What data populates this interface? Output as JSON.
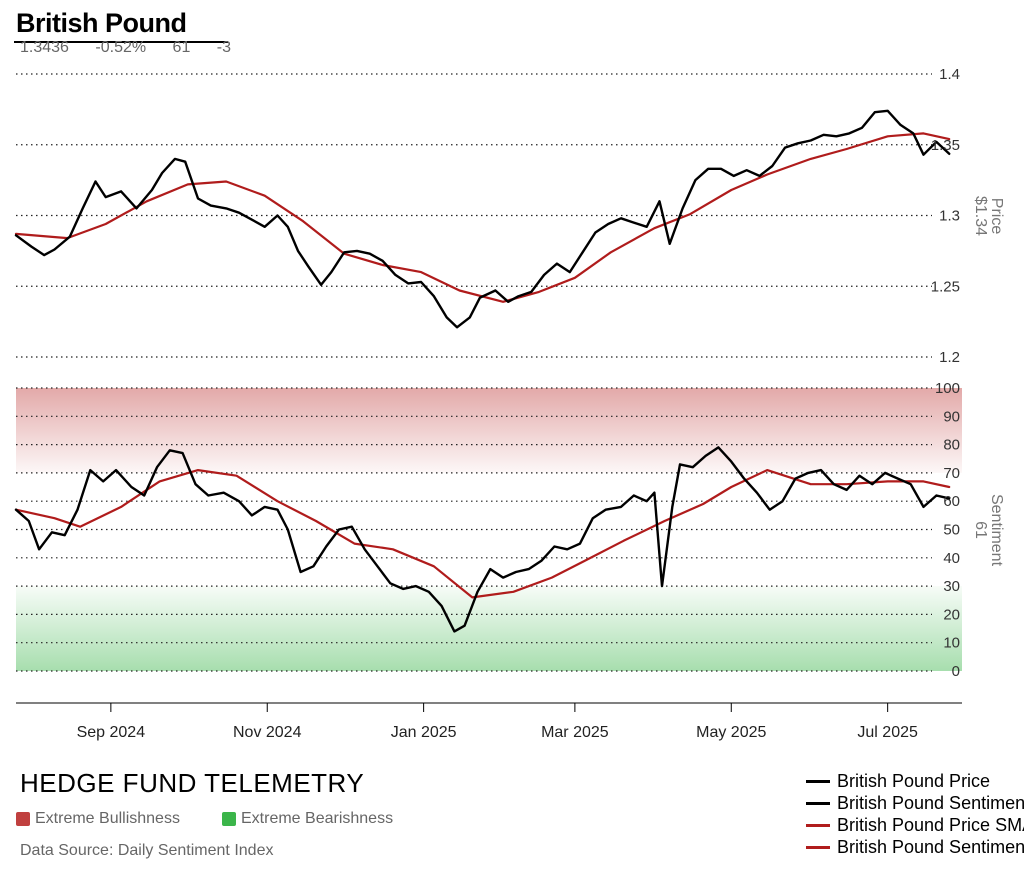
{
  "header": {
    "title": "British Pound",
    "stats": [
      "1.3436",
      "-0.52%",
      "61",
      "-3"
    ]
  },
  "footer": {
    "brand": "HEDGE FUND TELEMETRY",
    "categories": [
      {
        "label": "Extreme Bullishness",
        "color": "#c0403f"
      },
      {
        "label": "Extreme Bearishness",
        "color": "#3bb54a"
      }
    ],
    "source": "Data Source: Daily Sentiment Index"
  },
  "legend": [
    {
      "label": "British Pound Price",
      "color": "#000000"
    },
    {
      "label": "British Pound Sentiment",
      "color": "#000000"
    },
    {
      "label": "British Pound Price SMA",
      "color": "#b01c1c"
    },
    {
      "label": "British Pound Sentiment SMA",
      "color": "#b01c1c"
    }
  ],
  "chart_data": [
    {
      "type": "line",
      "title": "British Pound",
      "ylabel": "Price",
      "ylabel_value": "$1.34",
      "ylim": [
        1.2,
        1.4
      ],
      "yticks": [
        1.2,
        1.25,
        1.3,
        1.35,
        1.4
      ],
      "ytick_labels": [
        "1.2",
        "1.25",
        "1.3",
        "1.35",
        "1.4"
      ],
      "xlim": [
        "2024-07-26",
        "2025-07-30"
      ],
      "grid": true,
      "series": [
        {
          "name": "British Pound Price",
          "color": "#000000",
          "points": [
            [
              "2024-07-26",
              1.286
            ],
            [
              "2024-08-01",
              1.278
            ],
            [
              "2024-08-06",
              1.272
            ],
            [
              "2024-08-10",
              1.276
            ],
            [
              "2024-08-16",
              1.285
            ],
            [
              "2024-08-21",
              1.305
            ],
            [
              "2024-08-26",
              1.324
            ],
            [
              "2024-08-30",
              1.313
            ],
            [
              "2024-09-05",
              1.317
            ],
            [
              "2024-09-11",
              1.305
            ],
            [
              "2024-09-17",
              1.318
            ],
            [
              "2024-09-21",
              1.33
            ],
            [
              "2024-09-26",
              1.34
            ],
            [
              "2024-09-30",
              1.338
            ],
            [
              "2024-10-05",
              1.312
            ],
            [
              "2024-10-10",
              1.307
            ],
            [
              "2024-10-16",
              1.305
            ],
            [
              "2024-10-21",
              1.302
            ],
            [
              "2024-10-26",
              1.297
            ],
            [
              "2024-10-31",
              1.292
            ],
            [
              "2024-11-05",
              1.3
            ],
            [
              "2024-11-09",
              1.292
            ],
            [
              "2024-11-13",
              1.275
            ],
            [
              "2024-11-17",
              1.264
            ],
            [
              "2024-11-22",
              1.251
            ],
            [
              "2024-11-26",
              1.26
            ],
            [
              "2024-12-01",
              1.274
            ],
            [
              "2024-12-06",
              1.275
            ],
            [
              "2024-12-11",
              1.273
            ],
            [
              "2024-12-16",
              1.268
            ],
            [
              "2024-12-21",
              1.258
            ],
            [
              "2024-12-26",
              1.252
            ],
            [
              "2024-12-31",
              1.253
            ],
            [
              "2025-01-05",
              1.243
            ],
            [
              "2025-01-10",
              1.228
            ],
            [
              "2025-01-14",
              1.221
            ],
            [
              "2025-01-19",
              1.228
            ],
            [
              "2025-01-23",
              1.242
            ],
            [
              "2025-01-29",
              1.247
            ],
            [
              "2025-02-03",
              1.239
            ],
            [
              "2025-02-07",
              1.243
            ],
            [
              "2025-02-12",
              1.246
            ],
            [
              "2025-02-17",
              1.258
            ],
            [
              "2025-02-22",
              1.266
            ],
            [
              "2025-02-27",
              1.26
            ],
            [
              "2025-03-04",
              1.274
            ],
            [
              "2025-03-09",
              1.288
            ],
            [
              "2025-03-14",
              1.294
            ],
            [
              "2025-03-19",
              1.298
            ],
            [
              "2025-03-24",
              1.295
            ],
            [
              "2025-03-29",
              1.292
            ],
            [
              "2025-04-03",
              1.31
            ],
            [
              "2025-04-07",
              1.28
            ],
            [
              "2025-04-12",
              1.305
            ],
            [
              "2025-04-17",
              1.325
            ],
            [
              "2025-04-22",
              1.333
            ],
            [
              "2025-04-27",
              1.333
            ],
            [
              "2025-05-02",
              1.328
            ],
            [
              "2025-05-07",
              1.332
            ],
            [
              "2025-05-12",
              1.328
            ],
            [
              "2025-05-17",
              1.335
            ],
            [
              "2025-05-22",
              1.348
            ],
            [
              "2025-05-27",
              1.351
            ],
            [
              "2025-06-01",
              1.353
            ],
            [
              "2025-06-06",
              1.357
            ],
            [
              "2025-06-11",
              1.356
            ],
            [
              "2025-06-16",
              1.358
            ],
            [
              "2025-06-21",
              1.362
            ],
            [
              "2025-06-26",
              1.373
            ],
            [
              "2025-07-01",
              1.374
            ],
            [
              "2025-07-06",
              1.364
            ],
            [
              "2025-07-11",
              1.358
            ],
            [
              "2025-07-15",
              1.343
            ],
            [
              "2025-07-20",
              1.352
            ],
            [
              "2025-07-25",
              1.3436
            ]
          ]
        },
        {
          "name": "British Pound Price SMA",
          "color": "#b01c1c",
          "points": [
            [
              "2024-07-26",
              1.287
            ],
            [
              "2024-08-15",
              1.284
            ],
            [
              "2024-08-30",
              1.294
            ],
            [
              "2024-09-15",
              1.31
            ],
            [
              "2024-10-01",
              1.322
            ],
            [
              "2024-10-16",
              1.324
            ],
            [
              "2024-10-31",
              1.314
            ],
            [
              "2024-11-15",
              1.296
            ],
            [
              "2024-12-01",
              1.273
            ],
            [
              "2024-12-16",
              1.265
            ],
            [
              "2024-12-31",
              1.26
            ],
            [
              "2025-01-15",
              1.247
            ],
            [
              "2025-02-01",
              1.239
            ],
            [
              "2025-02-15",
              1.246
            ],
            [
              "2025-03-01",
              1.256
            ],
            [
              "2025-03-15",
              1.274
            ],
            [
              "2025-04-01",
              1.291
            ],
            [
              "2025-04-15",
              1.301
            ],
            [
              "2025-05-01",
              1.318
            ],
            [
              "2025-05-15",
              1.329
            ],
            [
              "2025-06-01",
              1.34
            ],
            [
              "2025-06-15",
              1.347
            ],
            [
              "2025-07-01",
              1.356
            ],
            [
              "2025-07-15",
              1.358
            ],
            [
              "2025-07-25",
              1.354
            ]
          ]
        }
      ]
    },
    {
      "type": "line",
      "ylabel": "Sentiment",
      "ylabel_value": "61",
      "ylim": [
        0,
        100
      ],
      "yticks": [
        0,
        10,
        20,
        30,
        40,
        50,
        60,
        70,
        80,
        90,
        100
      ],
      "ytick_labels": [
        "0",
        "10",
        "20",
        "30",
        "40",
        "50",
        "60",
        "70",
        "80",
        "90",
        "100"
      ],
      "xticks": [
        "2024-09-01",
        "2024-11-01",
        "2025-01-01",
        "2025-03-01",
        "2025-05-01",
        "2025-07-01"
      ],
      "xtick_labels": [
        "Sep 2024",
        "Nov 2024",
        "Jan 2025",
        "Mar 2025",
        "May 2025",
        "Jul 2025"
      ],
      "xlim": [
        "2024-07-26",
        "2025-07-30"
      ],
      "bands": [
        {
          "name": "Extreme Bullishness",
          "from": 70,
          "to": 100,
          "color": "#c0403f"
        },
        {
          "name": "Extreme Bearishness",
          "from": 0,
          "to": 30,
          "color": "#3bb54a"
        }
      ],
      "grid": true,
      "series": [
        {
          "name": "British Pound Sentiment",
          "color": "#000000",
          "points": [
            [
              "2024-07-26",
              57
            ],
            [
              "2024-07-31",
              53
            ],
            [
              "2024-08-04",
              43
            ],
            [
              "2024-08-09",
              49
            ],
            [
              "2024-08-14",
              48
            ],
            [
              "2024-08-19",
              57
            ],
            [
              "2024-08-24",
              71
            ],
            [
              "2024-08-29",
              67
            ],
            [
              "2024-09-03",
              71
            ],
            [
              "2024-09-09",
              65
            ],
            [
              "2024-09-14",
              62
            ],
            [
              "2024-09-19",
              72
            ],
            [
              "2024-09-24",
              78
            ],
            [
              "2024-09-29",
              77
            ],
            [
              "2024-10-04",
              66
            ],
            [
              "2024-10-09",
              62
            ],
            [
              "2024-10-15",
              63
            ],
            [
              "2024-10-21",
              60
            ],
            [
              "2024-10-26",
              55
            ],
            [
              "2024-10-31",
              58
            ],
            [
              "2024-11-05",
              57
            ],
            [
              "2024-11-09",
              50
            ],
            [
              "2024-11-14",
              35
            ],
            [
              "2024-11-19",
              37
            ],
            [
              "2024-11-24",
              44
            ],
            [
              "2024-11-29",
              50
            ],
            [
              "2024-12-04",
              51
            ],
            [
              "2024-12-09",
              43
            ],
            [
              "2024-12-14",
              37
            ],
            [
              "2024-12-19",
              31
            ],
            [
              "2024-12-24",
              29
            ],
            [
              "2024-12-29",
              30
            ],
            [
              "2025-01-03",
              28
            ],
            [
              "2025-01-08",
              23
            ],
            [
              "2025-01-13",
              14
            ],
            [
              "2025-01-17",
              16
            ],
            [
              "2025-01-22",
              28
            ],
            [
              "2025-01-27",
              36
            ],
            [
              "2025-02-01",
              33
            ],
            [
              "2025-02-06",
              35
            ],
            [
              "2025-02-11",
              36
            ],
            [
              "2025-02-16",
              39
            ],
            [
              "2025-02-21",
              44
            ],
            [
              "2025-02-26",
              43
            ],
            [
              "2025-03-03",
              45
            ],
            [
              "2025-03-08",
              54
            ],
            [
              "2025-03-13",
              57
            ],
            [
              "2025-03-19",
              58
            ],
            [
              "2025-03-24",
              62
            ],
            [
              "2025-03-29",
              60
            ],
            [
              "2025-04-01",
              63
            ],
            [
              "2025-04-04",
              30
            ],
            [
              "2025-04-08",
              58
            ],
            [
              "2025-04-11",
              73
            ],
            [
              "2025-04-16",
              72
            ],
            [
              "2025-04-21",
              76
            ],
            [
              "2025-04-26",
              79
            ],
            [
              "2025-05-01",
              74
            ],
            [
              "2025-05-06",
              68
            ],
            [
              "2025-05-11",
              63
            ],
            [
              "2025-05-16",
              57
            ],
            [
              "2025-05-21",
              60
            ],
            [
              "2025-05-26",
              68
            ],
            [
              "2025-05-31",
              70
            ],
            [
              "2025-06-05",
              71
            ],
            [
              "2025-06-10",
              66
            ],
            [
              "2025-06-15",
              64
            ],
            [
              "2025-06-20",
              69
            ],
            [
              "2025-06-25",
              66
            ],
            [
              "2025-06-30",
              70
            ],
            [
              "2025-07-05",
              68
            ],
            [
              "2025-07-10",
              66
            ],
            [
              "2025-07-15",
              58
            ],
            [
              "2025-07-20",
              62
            ],
            [
              "2025-07-25",
              61
            ]
          ]
        },
        {
          "name": "British Pound Sentiment SMA",
          "color": "#b01c1c",
          "points": [
            [
              "2024-07-26",
              57
            ],
            [
              "2024-08-10",
              54
            ],
            [
              "2024-08-20",
              51
            ],
            [
              "2024-09-05",
              58
            ],
            [
              "2024-09-20",
              67
            ],
            [
              "2024-10-05",
              71
            ],
            [
              "2024-10-20",
              69
            ],
            [
              "2024-11-05",
              60
            ],
            [
              "2024-11-20",
              53
            ],
            [
              "2024-12-05",
              45
            ],
            [
              "2024-12-20",
              43
            ],
            [
              "2025-01-05",
              37
            ],
            [
              "2025-01-20",
              26
            ],
            [
              "2025-02-05",
              28
            ],
            [
              "2025-02-20",
              33
            ],
            [
              "2025-03-05",
              39
            ],
            [
              "2025-03-20",
              46
            ],
            [
              "2025-04-05",
              53
            ],
            [
              "2025-04-20",
              59
            ],
            [
              "2025-05-01",
              65
            ],
            [
              "2025-05-15",
              71
            ],
            [
              "2025-06-01",
              66
            ],
            [
              "2025-06-15",
              66
            ],
            [
              "2025-07-01",
              67
            ],
            [
              "2025-07-15",
              67
            ],
            [
              "2025-07-25",
              65
            ]
          ]
        }
      ]
    }
  ]
}
